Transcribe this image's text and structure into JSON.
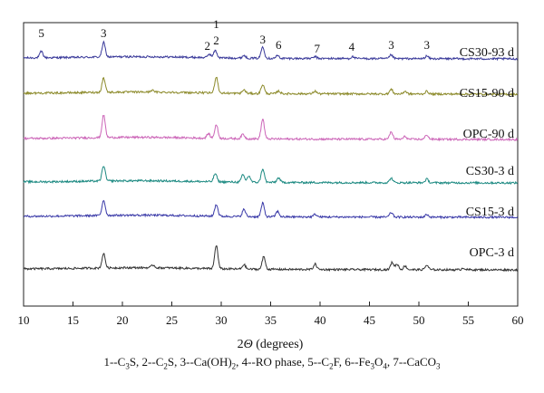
{
  "chart_data": {
    "type": "line",
    "xlabel_italic": "Θ",
    "xlabel_prefix": "2",
    "xlabel_suffix": " (degrees)",
    "xlim": [
      10,
      60
    ],
    "xticks": [
      "10",
      "15",
      "20",
      "25",
      "30",
      "35",
      "40",
      "45",
      "50",
      "55",
      "60"
    ],
    "grid": false,
    "series": [
      {
        "name": "CS30-93 d",
        "color": "#3a3a9a",
        "peaks": [
          [
            11.8,
            7
          ],
          [
            18.1,
            16
          ],
          [
            28.8,
            4
          ],
          [
            29.4,
            8
          ],
          [
            32.3,
            3
          ],
          [
            34.2,
            13
          ],
          [
            35.7,
            3
          ],
          [
            39.5,
            2
          ],
          [
            43.3,
            2
          ],
          [
            47.2,
            4
          ],
          [
            50.8,
            3
          ]
        ]
      },
      {
        "name": "CS15-90 d",
        "color": "#8c8a2a",
        "peaks": [
          [
            18.1,
            16
          ],
          [
            23.0,
            2
          ],
          [
            29.5,
            18
          ],
          [
            32.3,
            4
          ],
          [
            34.2,
            10
          ],
          [
            35.8,
            3
          ],
          [
            39.5,
            3
          ],
          [
            47.2,
            5
          ],
          [
            48.6,
            3
          ],
          [
            50.8,
            3
          ]
        ]
      },
      {
        "name": "OPC-90 d",
        "color": "#cc66b8",
        "peaks": [
          [
            18.1,
            25
          ],
          [
            28.7,
            5
          ],
          [
            29.5,
            15
          ],
          [
            32.2,
            5
          ],
          [
            34.2,
            22
          ],
          [
            47.2,
            8
          ],
          [
            48.6,
            3
          ],
          [
            50.8,
            5
          ]
        ]
      },
      {
        "name": "CS30-3 d",
        "color": "#1d8a82",
        "peaks": [
          [
            18.1,
            17
          ],
          [
            29.4,
            9
          ],
          [
            32.2,
            8
          ],
          [
            32.8,
            7
          ],
          [
            34.2,
            15
          ],
          [
            35.8,
            5
          ],
          [
            47.2,
            5
          ],
          [
            50.8,
            4
          ]
        ]
      },
      {
        "name": "CS15-3 d",
        "color": "#3a3aa8",
        "peaks": [
          [
            18.1,
            17
          ],
          [
            29.5,
            13
          ],
          [
            32.3,
            8
          ],
          [
            34.2,
            15
          ],
          [
            35.7,
            6
          ],
          [
            39.5,
            3
          ],
          [
            47.2,
            5
          ],
          [
            50.8,
            3
          ]
        ]
      },
      {
        "name": "OPC-3 d",
        "color": "#333333",
        "peaks": [
          [
            18.1,
            16
          ],
          [
            23.1,
            3
          ],
          [
            29.5,
            26
          ],
          [
            32.3,
            5
          ],
          [
            34.3,
            14
          ],
          [
            39.5,
            6
          ],
          [
            47.3,
            8
          ],
          [
            47.8,
            6
          ],
          [
            48.6,
            4
          ],
          [
            50.8,
            5
          ],
          [
            54.5,
            2
          ]
        ]
      }
    ],
    "peak_labels": [
      {
        "text": "5",
        "x": 11.8
      },
      {
        "text": "3",
        "x": 18.1
      },
      {
        "text": "2",
        "x": 28.6
      },
      {
        "text": "1",
        "x": 29.5,
        "row": "upper"
      },
      {
        "text": "2",
        "x": 29.5
      },
      {
        "text": "3",
        "x": 34.2
      },
      {
        "text": "6",
        "x": 35.8
      },
      {
        "text": "7",
        "x": 39.7
      },
      {
        "text": "4",
        "x": 43.2
      },
      {
        "text": "3",
        "x": 47.2
      },
      {
        "text": "3",
        "x": 50.8
      }
    ]
  },
  "legend": {
    "items": [
      {
        "num": "1",
        "sep": "--",
        "main": "C",
        "sub": "3",
        "tail": "S",
        "comma": ", "
      },
      {
        "num": "2",
        "sep": "--",
        "main": "C",
        "sub": "2",
        "tail": "S",
        "comma": ", "
      },
      {
        "num": "3",
        "sep": "--",
        "main": "Ca(OH)",
        "sub": "2",
        "tail": "",
        "comma": ", "
      },
      {
        "num": "4",
        "sep": "--",
        "main": "RO phase",
        "sub": "",
        "tail": "",
        "comma": ", "
      },
      {
        "num": "5",
        "sep": "--",
        "main": "C",
        "sub": "2",
        "tail": "F",
        "comma": ", "
      },
      {
        "num": "6",
        "sep": "--",
        "main": "Fe",
        "sub": "3",
        "tail": "O",
        "sub2": "4",
        "comma": ", "
      },
      {
        "num": "7",
        "sep": "--",
        "main": "CaCO",
        "sub": "3",
        "tail": "",
        "comma": ""
      }
    ]
  }
}
